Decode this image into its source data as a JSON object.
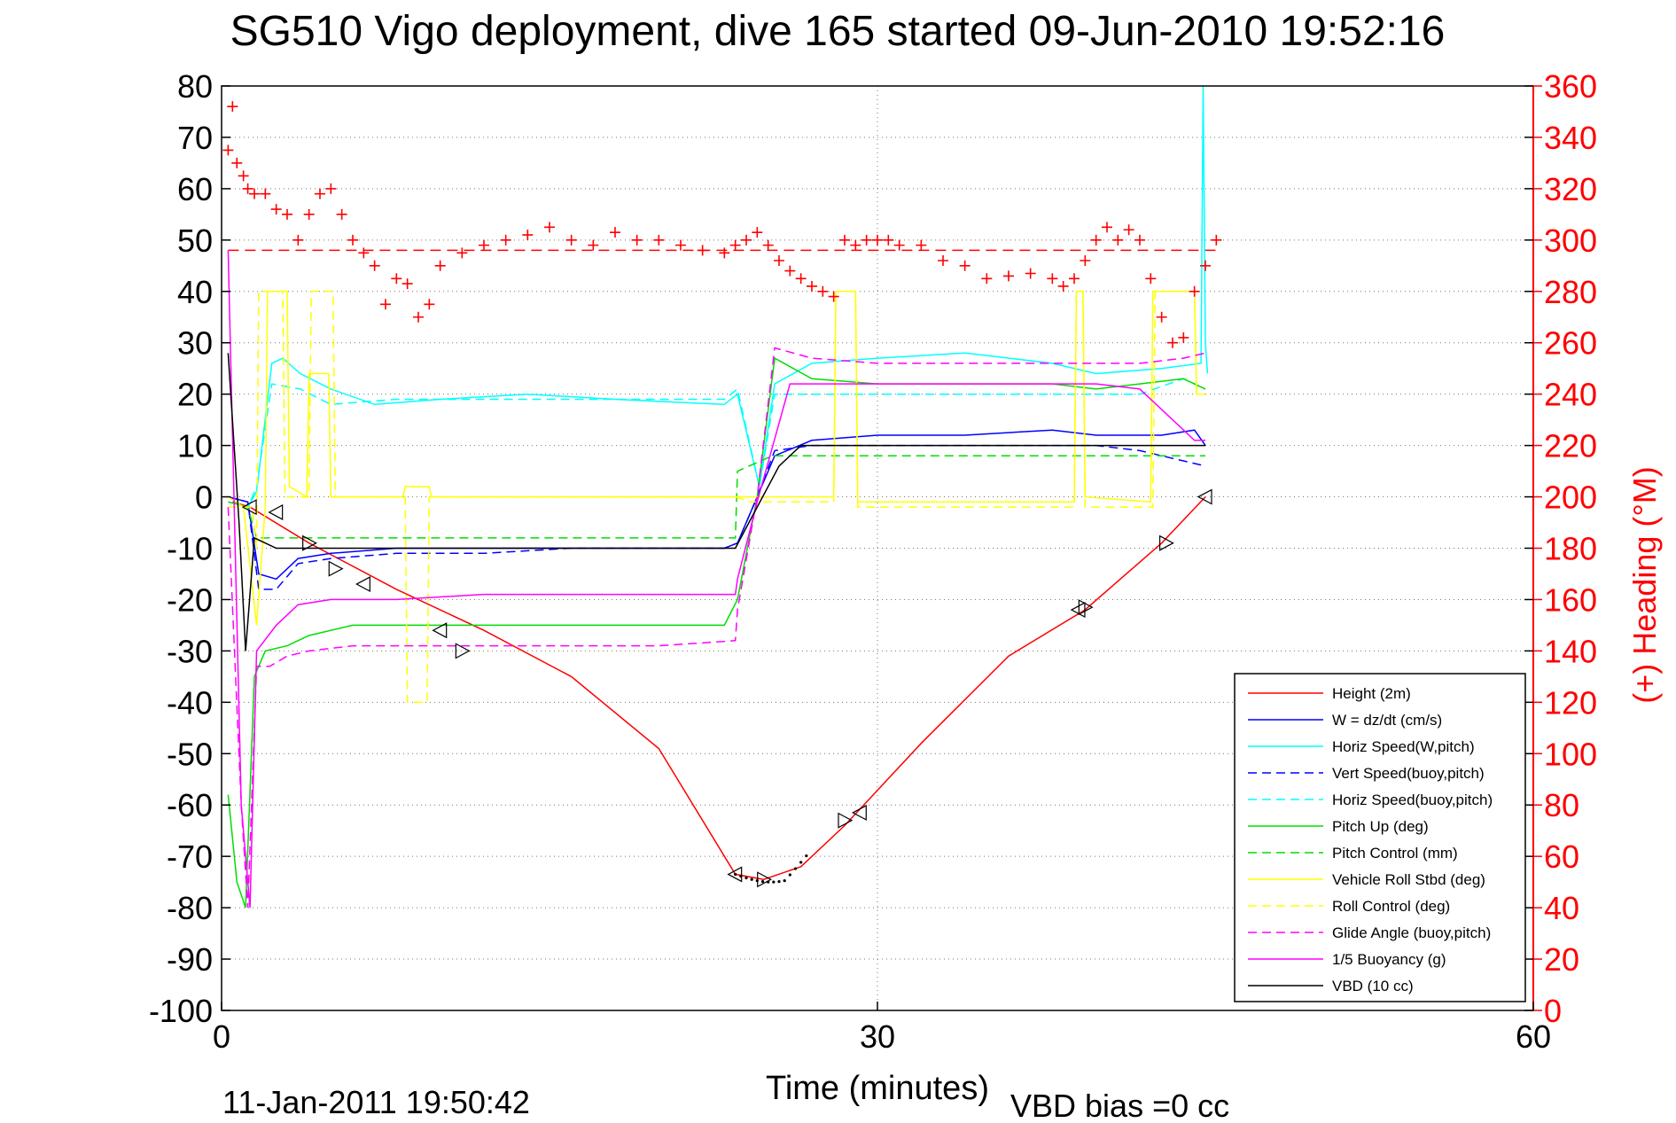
{
  "chart_data": {
    "type": "line",
    "title": "SG510 Vigo deployment, dive 165 started 09-Jun-2010 19:52:16",
    "xlabel": "Time (minutes)",
    "ylabel": "",
    "y2label": "(+) Heading (°M)",
    "xlim": [
      0,
      60
    ],
    "ylim": [
      -100,
      80
    ],
    "y2lim": [
      0,
      360
    ],
    "x_ticks": [
      0,
      30,
      60
    ],
    "y_ticks": [
      80,
      70,
      60,
      50,
      40,
      30,
      20,
      10,
      0,
      -10,
      -20,
      -30,
      -40,
      -50,
      -60,
      -70,
      -80,
      -90,
      -100
    ],
    "y2_ticks": [
      360,
      340,
      320,
      300,
      280,
      260,
      240,
      220,
      200,
      180,
      160,
      140,
      120,
      100,
      80,
      60,
      40,
      20,
      0
    ],
    "grid": true,
    "legend_position": "bottom-right",
    "footer_left": "11-Jan-2011 19:50:42",
    "footer_right": "VBD bias =0 cc",
    "series": [
      {
        "name": "Height (2m)",
        "color": "#ff0000",
        "dash": "solid",
        "x": [
          0.5,
          1.3,
          4,
          8,
          12,
          16,
          20,
          23.5,
          24.8,
          26.5,
          28.5,
          32,
          36,
          39.5,
          43,
          45
        ],
        "y": [
          -1,
          -2,
          -9,
          -18,
          -26,
          -35,
          -49,
          -73.5,
          -74.5,
          -72,
          -64,
          -48,
          -31,
          -22,
          -9,
          0
        ]
      },
      {
        "name": "W = dz/dt (cm/s)",
        "color": "#0000ff",
        "dash": "solid",
        "x": [
          0.3,
          1.2,
          1.7,
          2.5,
          3.5,
          5,
          8,
          12,
          16,
          20,
          23,
          23.6,
          24.4,
          25.3,
          27,
          30,
          34,
          38,
          40,
          43,
          44.5,
          45
        ],
        "y": [
          0,
          -1,
          -15,
          -16,
          -12,
          -11,
          -10,
          -10,
          -10,
          -10,
          -10,
          -9,
          -1,
          8,
          11,
          12,
          12,
          13,
          12,
          12,
          13,
          10
        ]
      },
      {
        "name": "Horiz Speed(W,pitch)",
        "color": "#00ffff",
        "dash": "solid",
        "x": [
          0.3,
          1.2,
          1.6,
          2.3,
          2.8,
          3.6,
          5,
          7,
          10,
          14,
          18,
          23,
          23.6,
          24.6,
          25.3,
          27,
          30,
          34,
          38,
          40,
          43,
          44.8,
          44.9,
          45,
          45.1
        ],
        "y": [
          -1,
          -2,
          1,
          26,
          27,
          24,
          21,
          18,
          19,
          20,
          19,
          18,
          20,
          2,
          22,
          26,
          27,
          28,
          26,
          24,
          25,
          26,
          80,
          30,
          24
        ]
      },
      {
        "name": "Vert Speed(buoy,pitch)",
        "color": "#0000ff",
        "dash": "dash",
        "x": [
          0.3,
          1.2,
          1.7,
          2.5,
          3.5,
          5,
          8,
          12,
          16,
          20,
          23,
          23.6,
          24.4,
          25.3,
          27,
          30,
          34,
          38,
          40,
          42,
          44,
          45
        ],
        "y": [
          0,
          -1,
          -18,
          -18,
          -13,
          -12,
          -11,
          -11,
          -10,
          -10,
          -10,
          -9,
          -1,
          9,
          10,
          10,
          10,
          10,
          10,
          9,
          7,
          6
        ]
      },
      {
        "name": "Horiz Speed(buoy,pitch)",
        "color": "#00ffff",
        "dash": "dash",
        "x": [
          0.3,
          1.2,
          1.6,
          2.3,
          3.6,
          5,
          8,
          12,
          16,
          20,
          23,
          23.6,
          24.6,
          25.3,
          27,
          30,
          34,
          38,
          40,
          42,
          44,
          45
        ],
        "y": [
          -1,
          -2,
          2,
          22,
          21,
          18,
          19,
          19,
          19,
          19,
          19,
          21,
          2,
          20,
          20,
          20,
          20,
          20,
          20,
          20,
          23,
          21
        ]
      },
      {
        "name": "Pitch Up (deg)",
        "color": "#00dd00",
        "dash": "solid",
        "x": [
          0.3,
          0.7,
          1.1,
          1.5,
          2,
          3,
          4,
          6,
          8,
          12,
          16,
          20,
          23,
          23.6,
          24.5,
          25.3,
          27,
          30,
          34,
          38,
          40,
          42,
          44,
          45
        ],
        "y": [
          -58,
          -75,
          -80,
          -35,
          -30,
          -29,
          -27,
          -25,
          -25,
          -25,
          -25,
          -25,
          -25,
          -20,
          0,
          27,
          23,
          22,
          22,
          22,
          21,
          22,
          23,
          21
        ]
      },
      {
        "name": "Pitch Control (mm)",
        "color": "#00dd00",
        "dash": "dash",
        "x": [
          0.3,
          1.2,
          1.6,
          2,
          4,
          8,
          12,
          16,
          20,
          23.5,
          23.6,
          25.2,
          27,
          30,
          34,
          38,
          42,
          45
        ],
        "y": [
          -1,
          -2,
          -8,
          -8,
          -8,
          -8,
          -8,
          -8,
          -8,
          -8,
          5,
          8,
          8,
          8,
          8,
          8,
          8,
          8
        ]
      },
      {
        "name": "Vehicle Roll Stbd (deg)",
        "color": "#ffff00",
        "dash": "solid",
        "x": [
          0.3,
          1.0,
          1.6,
          2.0,
          2.1,
          2.6,
          3.0,
          3.1,
          3.9,
          4.0,
          4.9,
          5.0,
          8.3,
          8.4,
          9.5,
          9.6,
          14,
          18,
          23.5,
          24.5,
          28.0,
          28.1,
          29.0,
          29.1,
          32,
          36,
          39.0,
          39.1,
          39.4,
          39.5,
          42.5,
          42.6,
          44.5,
          44.6,
          45
        ],
        "y": [
          0,
          -2,
          -25,
          -2,
          40,
          40,
          40,
          2,
          0,
          24,
          24,
          0,
          0,
          2,
          2,
          0,
          0,
          0,
          0,
          0,
          0,
          40,
          40,
          -1,
          -1,
          -1,
          -1,
          40,
          40,
          0,
          -1,
          40,
          40,
          20,
          20
        ]
      },
      {
        "name": "Roll Control (deg)",
        "color": "#ffff00",
        "dash": "dash",
        "x": [
          0.3,
          1.4,
          1.6,
          1.7,
          2.8,
          2.9,
          4.0,
          4.1,
          5.1,
          5.2,
          8.4,
          8.5,
          9.4,
          9.5,
          14,
          20,
          23.5,
          24.2,
          28.0,
          28.1,
          29.0,
          29.1,
          33,
          37,
          39.0,
          39.1,
          39.4,
          39.5,
          42.6,
          42.7,
          44.5,
          44.6,
          45
        ],
        "y": [
          -2,
          -2,
          -10,
          40,
          40,
          0,
          0,
          40,
          40,
          0,
          0,
          -40,
          -40,
          0,
          0,
          0,
          0,
          -1,
          -1,
          40,
          40,
          -2,
          -2,
          -2,
          -2,
          40,
          40,
          -2,
          -2,
          40,
          40,
          20,
          20
        ]
      },
      {
        "name": "Glide Angle (buoy,pitch)",
        "color": "#ff00ff",
        "dash": "dash",
        "x": [
          0.3,
          0.9,
          1.2,
          1.6,
          2.2,
          3,
          4,
          6,
          8,
          12,
          16,
          20,
          23.5,
          23.6,
          24.5,
          25.3,
          27,
          30,
          34,
          38,
          40,
          42,
          44,
          45
        ],
        "y": [
          -2,
          -60,
          -80,
          -33,
          -33,
          -31,
          -30,
          -29,
          -29,
          -29,
          -29,
          -29,
          -28,
          -22,
          0,
          29,
          27,
          26,
          26,
          26,
          26,
          26,
          27,
          28
        ]
      },
      {
        "name": "1/5 Buoyancy (g)",
        "color": "#ff00ff",
        "dash": "solid",
        "x": [
          0.3,
          0.9,
          1.3,
          1.6,
          2.5,
          3.5,
          5,
          8,
          12,
          16,
          20,
          23.5,
          23.6,
          24.5,
          26,
          28,
          32,
          36,
          40,
          42,
          43.5,
          44.5,
          45
        ],
        "y": [
          48,
          -60,
          -80,
          -30,
          -25,
          -21,
          -20,
          -20,
          -19,
          -19,
          -19,
          -19,
          -16,
          -1,
          22,
          22,
          22,
          22,
          22,
          21,
          15,
          11,
          11
        ]
      },
      {
        "name": "VBD (10 cc)",
        "color": "#000000",
        "dash": "solid",
        "x": [
          0.3,
          0.8,
          1.1,
          1.5,
          2.0,
          2.5,
          4,
          8,
          12,
          16,
          20,
          23.5,
          24.5,
          25.5,
          26.5,
          28,
          32,
          36,
          40,
          44,
          45
        ],
        "y": [
          28,
          -5,
          -30,
          -8,
          -9,
          -10,
          -10,
          -10,
          -10,
          -10,
          -10,
          -10,
          -2,
          6,
          10,
          10,
          10,
          10,
          10,
          10,
          10
        ]
      }
    ],
    "heading": {
      "name": "(+) Heading",
      "color": "#ff0000",
      "marker": "+",
      "x": [
        0.3,
        0.5,
        0.7,
        1.0,
        1.2,
        1.5,
        2.0,
        2.5,
        3.0,
        3.5,
        4.0,
        4.5,
        5.0,
        5.5,
        6.0,
        6.5,
        7.0,
        7.5,
        8.0,
        8.5,
        9.0,
        9.5,
        10.0,
        11.0,
        12.0,
        13.0,
        14.0,
        15.0,
        16.0,
        17.0,
        18.0,
        19.0,
        20.0,
        21.0,
        22.0,
        23.0,
        23.5,
        24.0,
        24.5,
        25.0,
        25.5,
        26.0,
        26.5,
        27.0,
        27.5,
        28.0,
        28.5,
        29.0,
        29.5,
        30.0,
        30.5,
        31.0,
        32.0,
        33.0,
        34.0,
        35.0,
        36.0,
        37.0,
        38.0,
        38.5,
        39.0,
        39.5,
        40.0,
        40.5,
        41.0,
        41.5,
        42.0,
        42.5,
        43.0,
        43.5,
        44.0,
        44.5,
        45.0,
        45.5
      ],
      "y": [
        335,
        352,
        330,
        325,
        320,
        318,
        318,
        312,
        310,
        300,
        310,
        318,
        320,
        310,
        300,
        295,
        290,
        275,
        285,
        283,
        270,
        275,
        290,
        295,
        298,
        300,
        302,
        305,
        300,
        298,
        303,
        300,
        300,
        298,
        296,
        295,
        298,
        300,
        303,
        298,
        292,
        288,
        285,
        282,
        280,
        278,
        300,
        298,
        300,
        300,
        300,
        298,
        298,
        292,
        290,
        285,
        286,
        287,
        285,
        282,
        285,
        292,
        300,
        305,
        300,
        304,
        300,
        285,
        270,
        260,
        262,
        280,
        290,
        300
      ]
    },
    "heading_reference": {
      "y": 296,
      "color": "#ff0000",
      "dash": "dash"
    }
  }
}
